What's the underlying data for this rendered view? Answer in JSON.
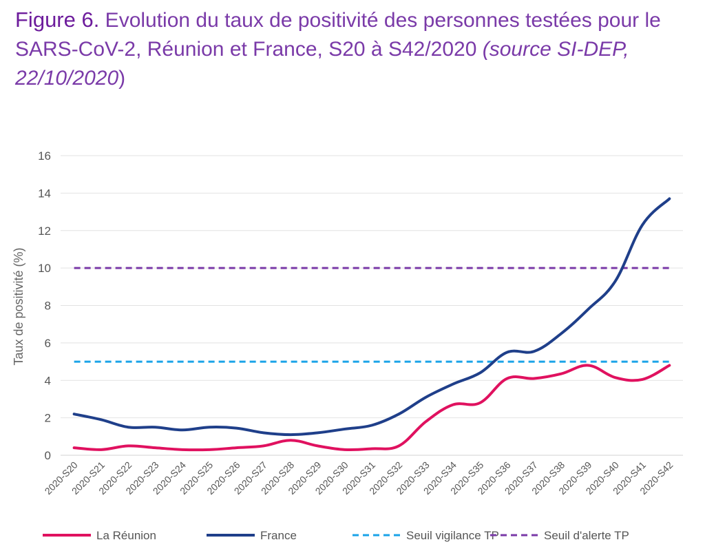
{
  "caption": {
    "figure": "Figure 6.",
    "text": " Evolution du taux de positivité des personnes testées pour le SARS-CoV-2, Réunion et France, S20 à S42/2020 ",
    "source": "(source SI-DEP, 22/10/2020",
    "close": ")"
  },
  "chart_data": {
    "type": "line",
    "title": "",
    "xlabel": "",
    "ylabel": "Taux de positivité (%)",
    "ylim": [
      0,
      16
    ],
    "yticks": [
      0,
      2,
      4,
      6,
      8,
      10,
      12,
      14,
      16
    ],
    "grid": true,
    "legend_position": "bottom",
    "x": [
      "2020-S20",
      "2020-S21",
      "2020-S22",
      "2020-S23",
      "2020-S24",
      "2020-S25",
      "2020-S26",
      "2020-S27",
      "2020-S28",
      "2020-S29",
      "2020-S30",
      "2020-S31",
      "2020-S32",
      "2020-S33",
      "2020-S34",
      "2020-S35",
      "2020-S36",
      "2020-S37",
      "2020-S38",
      "2020-S39",
      "2020-S40",
      "2020-S41",
      "2020-S42"
    ],
    "series": [
      {
        "name": "La Réunion",
        "color": "#e0115f",
        "dash": "solid",
        "values": [
          0.4,
          0.3,
          0.5,
          0.4,
          0.3,
          0.3,
          0.4,
          0.5,
          0.8,
          0.5,
          0.3,
          0.35,
          0.5,
          1.8,
          2.7,
          2.8,
          4.1,
          4.1,
          4.35,
          4.8,
          4.15,
          4.05,
          4.8
        ]
      },
      {
        "name": "France",
        "color": "#1f3f8a",
        "dash": "solid",
        "values": [
          2.2,
          1.9,
          1.5,
          1.5,
          1.35,
          1.5,
          1.45,
          1.2,
          1.1,
          1.2,
          1.4,
          1.6,
          2.2,
          3.1,
          3.8,
          4.4,
          5.5,
          5.55,
          6.5,
          7.8,
          9.3,
          12.3,
          13.7
        ]
      },
      {
        "name": "Seuil vigilance TP",
        "color": "#1aa3e8",
        "dash": "dashed",
        "values": [
          5,
          5,
          5,
          5,
          5,
          5,
          5,
          5,
          5,
          5,
          5,
          5,
          5,
          5,
          5,
          5,
          5,
          5,
          5,
          5,
          5,
          5,
          5
        ]
      },
      {
        "name": "Seuil d'alerte TP",
        "color": "#7a3aa8",
        "dash": "dashed",
        "values": [
          10,
          10,
          10,
          10,
          10,
          10,
          10,
          10,
          10,
          10,
          10,
          10,
          10,
          10,
          10,
          10,
          10,
          10,
          10,
          10,
          10,
          10,
          10
        ]
      }
    ]
  }
}
